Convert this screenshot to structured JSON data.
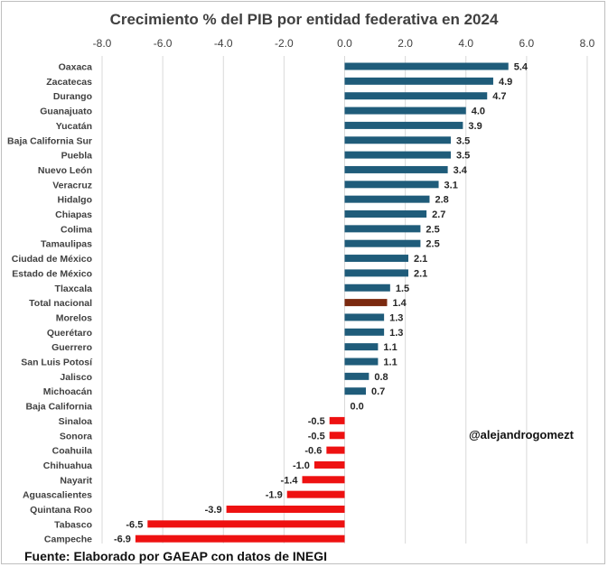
{
  "chart_data": {
    "type": "bar",
    "orientation": "horizontal",
    "title": "Crecimiento % del PIB por entidad federativa en 2024",
    "xlim": [
      -8.0,
      8.0
    ],
    "x_ticks": [
      "-8.0",
      "-6.0",
      "-4.0",
      "-2.0",
      "0.0",
      "2.0",
      "4.0",
      "6.0",
      "8.0"
    ],
    "x_tick_values": [
      -8,
      -6,
      -4,
      -2,
      0,
      2,
      4,
      6,
      8
    ],
    "x_axis_position": "top",
    "grid": true,
    "categories": [
      "Oaxaca",
      "Zacatecas",
      "Durango",
      "Guanajuato",
      "Yucatán",
      "Baja California Sur",
      "Puebla",
      "Nuevo León",
      "Veracruz",
      "Hidalgo",
      "Chiapas",
      "Colima",
      "Tamaulipas",
      "Ciudad de México",
      "Estado de México",
      "Tlaxcala",
      "Total nacional",
      "Morelos",
      "Querétaro",
      "Guerrero",
      "San Luis Potosí",
      "Jalisco",
      "Michoacán",
      "Baja California",
      "Sinaloa",
      "Sonora",
      "Coahuila",
      "Chihuahua",
      "Nayarit",
      "Aguascalientes",
      "Quintana Roo",
      "Tabasco",
      "Campeche"
    ],
    "values": [
      5.4,
      4.9,
      4.7,
      4.0,
      3.9,
      3.5,
      3.5,
      3.4,
      3.1,
      2.8,
      2.7,
      2.5,
      2.5,
      2.1,
      2.1,
      1.5,
      1.4,
      1.3,
      1.3,
      1.1,
      1.1,
      0.8,
      0.7,
      0.0,
      -0.5,
      -0.5,
      -0.6,
      -1.0,
      -1.4,
      -1.9,
      -3.9,
      -6.5,
      -6.9
    ],
    "value_labels": [
      "5.4",
      "4.9",
      "4.7",
      "4.0",
      "3.9",
      "3.5",
      "3.5",
      "3.4",
      "3.1",
      "2.8",
      "2.7",
      "2.5",
      "2.5",
      "2.1",
      "2.1",
      "1.5",
      "1.4",
      "1.3",
      "1.3",
      "1.1",
      "1.1",
      "0.8",
      "0.7",
      "0.0",
      "-0.5",
      "-0.5",
      "-0.6",
      "-1.0",
      "-1.4",
      "-1.9",
      "-3.9",
      "-6.5",
      "-6.9"
    ],
    "colors": {
      "positive": "#1f5c7a",
      "negative": "#ee1111",
      "highlight": "#7b2a10",
      "grid": "#d9d9d9",
      "text": "#404040"
    },
    "highlight_category": "Total nacional"
  },
  "annotations": {
    "handle": "@alejandrogomezt",
    "source": "Fuente: Elaborado por GAEAP con datos de INEGI"
  }
}
